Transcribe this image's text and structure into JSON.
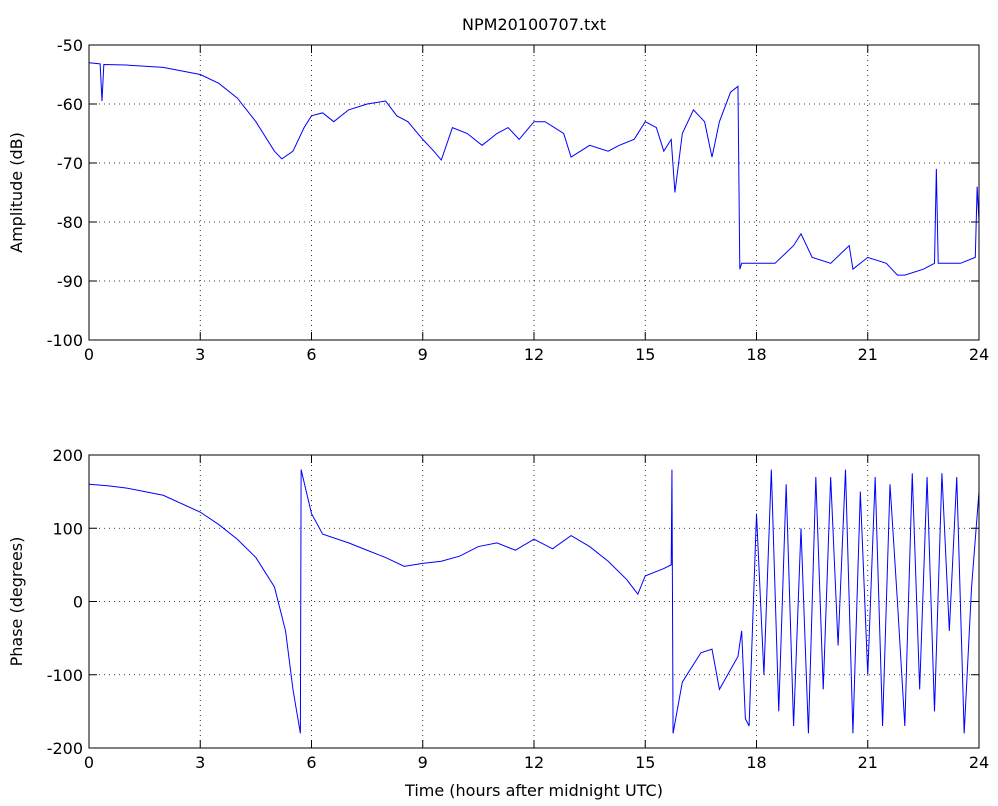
{
  "chart_data": [
    {
      "type": "line",
      "title": "NPM20100707.txt",
      "y_label": "Amplitude (dB)",
      "x": [
        0,
        0.3,
        0.35,
        0.4,
        1,
        2,
        3,
        3.5,
        4,
        4.5,
        5,
        5.2,
        5.5,
        5.8,
        6,
        6.3,
        6.6,
        7,
        7.5,
        8,
        8.3,
        8.6,
        9,
        9.3,
        9.5,
        9.8,
        10.2,
        10.6,
        11,
        11.3,
        11.6,
        12,
        12.3,
        12.8,
        13,
        13.5,
        14,
        14.3,
        14.7,
        15,
        15.3,
        15.5,
        15.7,
        15.8,
        16,
        16.3,
        16.6,
        16.8,
        17,
        17.3,
        17.5,
        17.55,
        17.6,
        18,
        18.5,
        19,
        19.2,
        19.5,
        20,
        20.5,
        20.6,
        21,
        21.5,
        21.8,
        22,
        22.5,
        22.8,
        22.85,
        22.9,
        23.5,
        23.9,
        23.95,
        24
      ],
      "series": [
        {
          "color": "#0000ff",
          "values": [
            -53,
            -53.2,
            -59.5,
            -53.3,
            -53.4,
            -53.8,
            -55,
            -56.5,
            -59,
            -63,
            -68,
            -69.3,
            -68,
            -64,
            -62,
            -61.5,
            -63,
            -61,
            -60,
            -59.5,
            -62,
            -63,
            -66,
            -68,
            -69.5,
            -64,
            -65,
            -67,
            -65,
            -64,
            -66,
            -63,
            -63,
            -65,
            -69,
            -67,
            -68,
            -67,
            -66,
            -63,
            -64,
            -68,
            -66,
            -75,
            -65,
            -61,
            -63,
            -69,
            -63,
            -58,
            -57,
            -88,
            -87,
            -87,
            -87,
            -84,
            -82,
            -86,
            -87,
            -84,
            -88,
            -86,
            -87,
            -89,
            -89,
            -88,
            -87,
            -71,
            -87,
            -87,
            -86,
            -74,
            -80
          ]
        }
      ],
      "xlim": [
        0,
        24
      ],
      "xticks": [
        0,
        3,
        6,
        9,
        12,
        15,
        18,
        21,
        24
      ],
      "ylim": [
        -100,
        -50
      ],
      "yticks": [
        -100,
        -90,
        -80,
        -70,
        -60,
        -50
      ],
      "grid": true
    },
    {
      "type": "line",
      "x_label": "Time (hours after midnight UTC)",
      "y_label": "Phase (degrees)",
      "x": [
        0,
        0.5,
        1,
        2,
        3,
        3.5,
        4,
        4.5,
        5,
        5.3,
        5.5,
        5.7,
        5.72,
        6,
        6.3,
        7,
        7.5,
        8,
        8.5,
        9,
        9.5,
        10,
        10.5,
        11,
        11.5,
        12,
        12.5,
        13,
        13.5,
        14,
        14.5,
        14.8,
        15,
        15.5,
        15.7,
        15.72,
        15.75,
        16,
        16.5,
        16.8,
        17,
        17.5,
        17.6,
        17.7,
        17.8,
        18,
        18.2,
        18.4,
        18.6,
        18.8,
        19,
        19.2,
        19.4,
        19.6,
        19.8,
        20,
        20.2,
        20.4,
        20.6,
        20.8,
        21,
        21.2,
        21.4,
        21.6,
        21.8,
        22,
        22.2,
        22.4,
        22.6,
        22.8,
        23,
        23.2,
        23.4,
        23.6,
        23.8,
        24
      ],
      "series": [
        {
          "color": "#0000ff",
          "values": [
            160,
            158,
            155,
            145,
            122,
            105,
            85,
            60,
            20,
            -40,
            -120,
            -180,
            180,
            120,
            92,
            80,
            70,
            60,
            48,
            52,
            55,
            62,
            75,
            80,
            70,
            85,
            72,
            90,
            75,
            55,
            30,
            10,
            35,
            45,
            50,
            180,
            -180,
            -110,
            -70,
            -65,
            -120,
            -75,
            -40,
            -160,
            -170,
            120,
            -100,
            180,
            -150,
            160,
            -170,
            100,
            -180,
            170,
            -120,
            170,
            -60,
            180,
            -180,
            150,
            -100,
            170,
            -170,
            160,
            0,
            -170,
            175,
            -120,
            170,
            -150,
            175,
            -40,
            170,
            -180,
            20,
            150
          ]
        }
      ],
      "xlim": [
        0,
        24
      ],
      "xticks": [
        0,
        3,
        6,
        9,
        12,
        15,
        18,
        21,
        24
      ],
      "ylim": [
        -200,
        200
      ],
      "yticks": [
        -200,
        -100,
        0,
        100,
        200
      ],
      "grid": true
    }
  ]
}
